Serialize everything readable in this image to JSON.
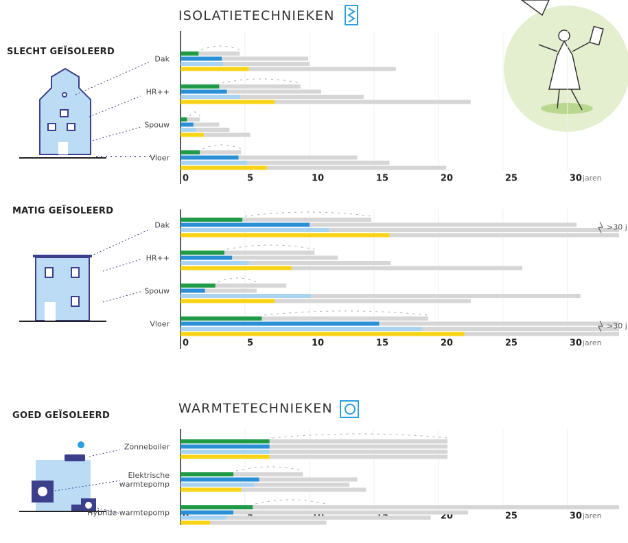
{
  "chart_data": [
    {
      "type": "bar",
      "title": "ISOLATIETECHNIEKEN",
      "subtitle": "SLECHT GEÏSOLEERD",
      "categories": [
        "Dak",
        "HR++",
        "Spouw",
        "Vloer"
      ],
      "series": [
        {
          "color": "#1f9a47",
          "values": [
            1.4,
            3.0,
            0.5,
            1.5
          ],
          "max": [
            4.6,
            9.3,
            1.5,
            4.7
          ]
        },
        {
          "color": "#2a8fd4",
          "values": [
            3.2,
            3.6,
            1.0,
            4.5
          ],
          "max": [
            9.9,
            10.9,
            3.0,
            13.7
          ]
        },
        {
          "color": "#a9d3f0",
          "values": [
            3.3,
            4.6,
            1.2,
            5.2
          ],
          "max": [
            10.0,
            14.2,
            3.8,
            16.2
          ]
        },
        {
          "color": "#f7d417",
          "values": [
            5.3,
            7.3,
            1.8,
            6.7
          ],
          "max": [
            16.7,
            22.5,
            5.4,
            20.6
          ]
        }
      ],
      "xlabel": "jaren",
      "xlim": [
        0,
        34
      ],
      "xticks": [
        0,
        5,
        10,
        15,
        20,
        25,
        30
      ],
      "grid": true
    },
    {
      "type": "bar",
      "subtitle": "MATIG GEÏSOLEERD",
      "categories": [
        "Dak",
        "HR++",
        "Spouw",
        "Vloer"
      ],
      "notes": [
        ">30 j",
        null,
        null,
        ">30 j"
      ],
      "series": [
        {
          "color": "#1f9a47",
          "values": [
            4.8,
            3.4,
            2.7,
            6.3
          ],
          "max": [
            14.8,
            10.4,
            8.2,
            19.2
          ]
        },
        {
          "color": "#2a8fd4",
          "values": [
            10.0,
            4.0,
            1.9,
            15.4
          ],
          "max": [
            30.7,
            12.2,
            5.9,
            null
          ]
        },
        {
          "color": "#a9d3f0",
          "values": [
            11.5,
            5.3,
            10.1,
            18.7
          ],
          "max": [
            null,
            16.3,
            31.0,
            null
          ]
        },
        {
          "color": "#f7d417",
          "values": [
            16.2,
            8.6,
            7.3,
            22.0
          ],
          "max": [
            null,
            26.5,
            22.5,
            null
          ]
        }
      ],
      "xlabel": "jaren",
      "xlim": [
        0,
        34
      ],
      "xticks": [
        0,
        5,
        10,
        15,
        20,
        25,
        30
      ],
      "grid": true
    },
    {
      "type": "bar",
      "title": "WARMTETECHNIEKEN",
      "subtitle": "GOED GEÏSOLEERD",
      "categories": [
        "Zonneboiler",
        "Elektrische warmtepomp",
        "Hybride warmtepomp"
      ],
      "series": [
        {
          "color": "#1f9a47",
          "values": [
            6.9,
            4.1,
            5.6
          ],
          "max": [
            20.7,
            9.5,
            null
          ]
        },
        {
          "color": "#2a8fd4",
          "values": [
            6.9,
            6.1,
            4.1
          ],
          "max": [
            20.7,
            13.7,
            22.3
          ]
        },
        {
          "color": "#a9d3f0",
          "values": [
            6.9,
            5.7,
            3.6
          ],
          "max": [
            20.7,
            13.1,
            19.4
          ]
        },
        {
          "color": "#f7d417",
          "values": [
            6.9,
            4.7,
            2.3
          ],
          "max": [
            20.7,
            14.4,
            11.3
          ]
        }
      ],
      "xlabel": "jaren",
      "xlim": [
        0,
        34
      ],
      "xticks": [
        0,
        5,
        10,
        15,
        20,
        25,
        30
      ],
      "grid": true
    }
  ]
}
